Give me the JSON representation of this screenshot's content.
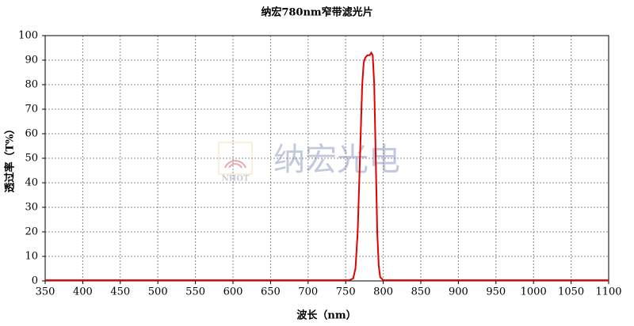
{
  "chart_data": {
    "type": "line",
    "title": "纳宏780nm窄带滤光片",
    "x_label": "波长（nm）",
    "y_label": "透过率（T%）",
    "watermark": "纳宏光电",
    "watermark_logo": "NHOT",
    "x": [
      350,
      700,
      755,
      760,
      763,
      766,
      769,
      772,
      774,
      776,
      779,
      782,
      784,
      786,
      788,
      790,
      792,
      794,
      796,
      800,
      1100
    ],
    "series": [
      {
        "name": "780nm",
        "color": "#e00000",
        "values": [
          0.3,
          0.3,
          0.3,
          1,
          5,
          20,
          50,
          80,
          89,
          91,
          92,
          92,
          93,
          92,
          80,
          50,
          20,
          6,
          1.5,
          0.3,
          0.3
        ]
      }
    ],
    "xlim": [
      350,
      1100
    ],
    "ylim": [
      0,
      100
    ],
    "xticks": [
      350,
      400,
      450,
      500,
      550,
      600,
      650,
      700,
      750,
      800,
      850,
      900,
      950,
      1000,
      1050,
      1100
    ],
    "yticks": [
      0,
      10,
      20,
      30,
      40,
      50,
      60,
      70,
      80,
      90,
      100
    ],
    "grid": true
  }
}
